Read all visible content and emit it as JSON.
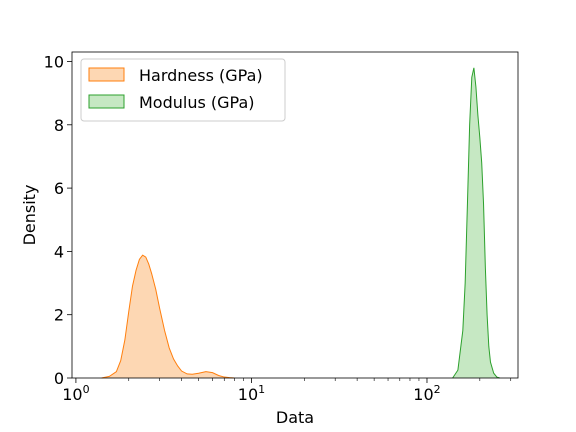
{
  "chart_data": {
    "type": "area",
    "xlabel": "Data",
    "ylabel": "Density",
    "x_scale": "log",
    "xlim": [
      0.95,
      330
    ],
    "ylim": [
      0,
      10.3
    ],
    "x_ticks": [
      {
        "value": 1,
        "base": "10",
        "exp": "0"
      },
      {
        "value": 10,
        "base": "10",
        "exp": "1"
      },
      {
        "value": 100,
        "base": "10",
        "exp": "2"
      }
    ],
    "y_ticks": [
      {
        "value": 0,
        "label": "0"
      },
      {
        "value": 2,
        "label": "2"
      },
      {
        "value": 4,
        "label": "4"
      },
      {
        "value": 6,
        "label": "6"
      },
      {
        "value": 8,
        "label": "8"
      },
      {
        "value": 10,
        "label": "10"
      }
    ],
    "legend_position": "upper-left",
    "series": [
      {
        "name": "Hardness (GPa)",
        "line_color": "#ff7f0e",
        "fill_color": "#fdd7b3",
        "x": [
          1.4,
          1.55,
          1.7,
          1.8,
          1.9,
          2.0,
          2.1,
          2.2,
          2.3,
          2.4,
          2.5,
          2.6,
          2.7,
          2.85,
          3.0,
          3.2,
          3.4,
          3.6,
          3.8,
          4.0,
          4.3,
          4.6,
          5.0,
          5.5,
          6.0,
          6.5,
          7.0,
          7.5,
          8.0
        ],
        "y": [
          0.0,
          0.05,
          0.2,
          0.55,
          1.2,
          2.1,
          2.9,
          3.4,
          3.75,
          3.88,
          3.82,
          3.6,
          3.3,
          2.8,
          2.2,
          1.5,
          0.95,
          0.6,
          0.38,
          0.22,
          0.13,
          0.12,
          0.15,
          0.2,
          0.17,
          0.08,
          0.03,
          0.01,
          0.0
        ]
      },
      {
        "name": "Modulus (GPa)",
        "line_color": "#2ca02c",
        "fill_color": "#c6e8c3",
        "x": [
          140,
          150,
          160,
          165,
          170,
          175,
          180,
          185,
          190,
          195,
          200,
          205,
          210,
          215,
          220,
          225,
          230,
          240,
          250,
          260
        ],
        "y": [
          0.0,
          0.25,
          1.5,
          3.0,
          5.5,
          8.0,
          9.5,
          9.8,
          9.2,
          8.3,
          7.6,
          6.8,
          5.5,
          3.5,
          2.0,
          1.0,
          0.5,
          0.15,
          0.03,
          0.0
        ]
      }
    ]
  }
}
